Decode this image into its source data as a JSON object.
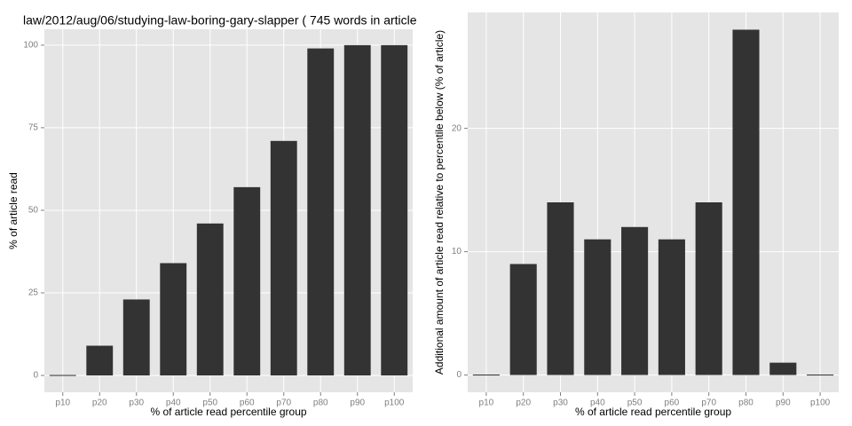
{
  "chart_data": [
    {
      "type": "bar",
      "title": "law/2012/aug/06/studying-law-boring-gary-slapper ( 745 words in article",
      "x_label": "% of article read percentile group",
      "y_label": "% of article read",
      "categories": [
        "p10",
        "p20",
        "p30",
        "p40",
        "p50",
        "p60",
        "p70",
        "p80",
        "p90",
        "p100"
      ],
      "values": [
        0,
        9,
        23,
        34,
        46,
        57,
        71,
        99,
        100,
        100
      ],
      "color": "#333333",
      "ylim": [
        -5.1,
        104.8
      ],
      "yticks": [
        0,
        25,
        50,
        75,
        100
      ],
      "grid": true
    },
    {
      "type": "bar",
      "x_label": "% of article read percentile group",
      "y_label": "Additional amount of article read relative to percentile below (% of article)",
      "categories": [
        "p10",
        "p20",
        "p30",
        "p40",
        "p50",
        "p60",
        "p70",
        "p80",
        "p90",
        "p100"
      ],
      "values": [
        0,
        9,
        14,
        11,
        12,
        11,
        14,
        28,
        1,
        0
      ],
      "color": "#333333",
      "ylim": [
        -1.4,
        29.4
      ],
      "yticks": [
        0,
        10,
        20
      ],
      "grid": true
    }
  ]
}
